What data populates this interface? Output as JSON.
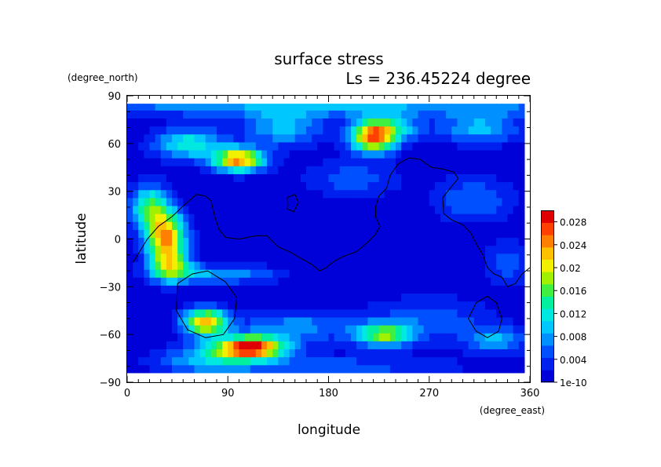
{
  "chart_data": {
    "type": "heatmap",
    "title": "surface stress",
    "subtitle": "Ls = 236.45224 degree",
    "xlabel": "longitude",
    "ylabel": "latitude",
    "x_units": "(degree_east)",
    "y_units": "(degree_north)",
    "xlim": [
      0,
      360
    ],
    "ylim": [
      -90,
      90
    ],
    "x_ticks": [
      "0",
      "90",
      "180",
      "270",
      "360"
    ],
    "y_ticks": [
      "90",
      "60",
      "30",
      "0",
      "−30",
      "−60",
      "−90"
    ],
    "x_tick_values": [
      0,
      90,
      180,
      270,
      360
    ],
    "y_tick_values": [
      90,
      60,
      30,
      0,
      -30,
      -60,
      -90
    ],
    "colorbar": {
      "min": 0,
      "max": 0.03,
      "labels": [
        "0.028",
        "0.024",
        "0.02",
        "0.016",
        "0.012",
        "0.008",
        "0.004",
        "1e-10"
      ],
      "label_values": [
        0.028,
        0.024,
        0.02,
        0.016,
        0.012,
        0.008,
        0.004,
        0
      ],
      "colors": [
        "#0000d8",
        "#0020f0",
        "#0050ff",
        "#0090ff",
        "#00c8ff",
        "#00e8e0",
        "#00f0a0",
        "#40f040",
        "#a0f000",
        "#f0f000",
        "#ffc000",
        "#ff8000",
        "#ff4000",
        "#e00000"
      ]
    },
    "data_extent": {
      "lon": [
        0,
        355
      ],
      "lat": [
        -84,
        85
      ]
    },
    "features": [
      {
        "lon": 100,
        "lat": 50,
        "value": 0.024,
        "sigma_lon": 16,
        "sigma_lat": 5
      },
      {
        "lon": 55,
        "lat": 60,
        "value": 0.012,
        "sigma_lon": 22,
        "sigma_lat": 7
      },
      {
        "lon": 140,
        "lat": 70,
        "value": 0.009,
        "sigma_lon": 25,
        "sigma_lat": 8
      },
      {
        "lon": 220,
        "lat": 64,
        "value": 0.022,
        "sigma_lon": 14,
        "sigma_lat": 7
      },
      {
        "lon": 235,
        "lat": 70,
        "value": 0.01,
        "sigma_lon": 20,
        "sigma_lat": 6
      },
      {
        "lon": 315,
        "lat": 70,
        "value": 0.009,
        "sigma_lon": 25,
        "sigma_lat": 7
      },
      {
        "lon": 35,
        "lat": 0,
        "value": 0.024,
        "sigma_lon": 12,
        "sigma_lat": 12
      },
      {
        "lon": 20,
        "lat": 20,
        "value": 0.014,
        "sigma_lon": 12,
        "sigma_lat": 10
      },
      {
        "lon": 40,
        "lat": -18,
        "value": 0.012,
        "sigma_lon": 14,
        "sigma_lat": 6
      },
      {
        "lon": 85,
        "lat": -22,
        "value": 0.008,
        "sigma_lon": 35,
        "sigma_lat": 4
      },
      {
        "lon": 70,
        "lat": -52,
        "value": 0.022,
        "sigma_lon": 14,
        "sigma_lat": 6
      },
      {
        "lon": 110,
        "lat": -68,
        "value": 0.028,
        "sigma_lon": 22,
        "sigma_lat": 5
      },
      {
        "lon": 70,
        "lat": -75,
        "value": 0.008,
        "sigma_lon": 30,
        "sigma_lat": 6
      },
      {
        "lon": 230,
        "lat": -60,
        "value": 0.016,
        "sigma_lon": 18,
        "sigma_lat": 5
      },
      {
        "lon": 150,
        "lat": -55,
        "value": 0.007,
        "sigma_lon": 35,
        "sigma_lat": 7
      },
      {
        "lon": 270,
        "lat": -50,
        "value": 0.005,
        "sigma_lon": 40,
        "sigma_lat": 10
      },
      {
        "lon": 330,
        "lat": -63,
        "value": 0.008,
        "sigma_lon": 20,
        "sigma_lat": 6
      },
      {
        "lon": 180,
        "lat": -80,
        "value": 0.005,
        "sigma_lon": 80,
        "sigma_lat": 5
      },
      {
        "lon": 180,
        "lat": 83,
        "value": 0.008,
        "sigma_lon": 200,
        "sigma_lat": 4
      },
      {
        "lon": 310,
        "lat": 25,
        "value": 0.006,
        "sigma_lon": 25,
        "sigma_lat": 10
      },
      {
        "lon": 200,
        "lat": 38,
        "value": 0.005,
        "sigma_lon": 30,
        "sigma_lat": 8
      },
      {
        "lon": 340,
        "lat": -15,
        "value": 0.005,
        "sigma_lon": 15,
        "sigma_lat": 10
      }
    ],
    "contour_lines": [
      {
        "name": "continent-outline",
        "closed": false,
        "points": [
          [
            5,
            -15
          ],
          [
            18,
            0
          ],
          [
            28,
            8
          ],
          [
            40,
            14
          ],
          [
            52,
            22
          ],
          [
            62,
            28
          ],
          [
            70,
            27
          ],
          [
            75,
            24
          ],
          [
            78,
            15
          ],
          [
            82,
            6
          ],
          [
            88,
            1
          ],
          [
            100,
            0
          ],
          [
            115,
            2
          ],
          [
            125,
            2
          ],
          [
            135,
            -5
          ],
          [
            145,
            -8
          ],
          [
            155,
            -12
          ],
          [
            165,
            -16
          ],
          [
            172,
            -20
          ],
          [
            178,
            -18
          ],
          [
            185,
            -14
          ],
          [
            193,
            -11
          ],
          [
            205,
            -8
          ],
          [
            215,
            -2
          ],
          [
            222,
            3
          ],
          [
            226,
            8
          ],
          [
            222,
            14
          ],
          [
            222,
            20
          ],
          [
            225,
            27
          ],
          [
            232,
            32
          ],
          [
            235,
            40
          ],
          [
            242,
            47
          ],
          [
            252,
            51
          ],
          [
            262,
            50
          ],
          [
            272,
            45
          ],
          [
            282,
            44
          ],
          [
            292,
            42
          ],
          [
            296,
            38
          ],
          [
            290,
            33
          ],
          [
            282,
            26
          ],
          [
            283,
            16
          ],
          [
            290,
            12
          ],
          [
            300,
            9
          ],
          [
            307,
            4
          ],
          [
            312,
            -3
          ],
          [
            318,
            -10
          ],
          [
            322,
            -18
          ],
          [
            328,
            -22
          ],
          [
            335,
            -24
          ],
          [
            340,
            -30
          ],
          [
            347,
            -28
          ],
          [
            353,
            -22
          ],
          [
            360,
            -18
          ]
        ]
      },
      {
        "name": "small-island-outline",
        "closed": true,
        "points": [
          [
            143,
            26
          ],
          [
            150,
            28
          ],
          [
            153,
            23
          ],
          [
            149,
            17
          ],
          [
            143,
            19
          ]
        ]
      },
      {
        "name": "south-loop-outline",
        "closed": true,
        "points": [
          [
            45,
            -28
          ],
          [
            58,
            -22
          ],
          [
            72,
            -20
          ],
          [
            88,
            -27
          ],
          [
            98,
            -37
          ],
          [
            96,
            -50
          ],
          [
            86,
            -60
          ],
          [
            70,
            -62
          ],
          [
            54,
            -57
          ],
          [
            44,
            -45
          ]
        ]
      },
      {
        "name": "east-loop-outline",
        "closed": true,
        "points": [
          [
            312,
            -40
          ],
          [
            322,
            -36
          ],
          [
            330,
            -40
          ],
          [
            335,
            -50
          ],
          [
            332,
            -58
          ],
          [
            322,
            -62
          ],
          [
            312,
            -58
          ],
          [
            305,
            -50
          ]
        ]
      }
    ]
  }
}
